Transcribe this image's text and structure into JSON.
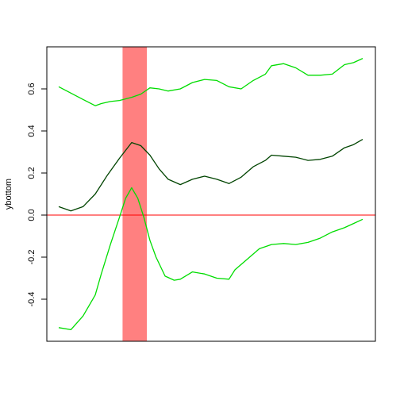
{
  "chart_data": {
    "type": "line",
    "title": "",
    "xlabel": "",
    "ylabel": "ybottom",
    "xlim": [
      0,
      100
    ],
    "ylim": [
      -0.6,
      0.8
    ],
    "yticks": [
      {
        "value": -0.4,
        "label": "-0.4"
      },
      {
        "value": -0.2,
        "label": "-0.2"
      },
      {
        "value": 0.0,
        "label": "0.0"
      },
      {
        "value": 0.2,
        "label": "0.2"
      },
      {
        "value": 0.4,
        "label": "0.4"
      },
      {
        "value": 0.6,
        "label": "0.6"
      }
    ],
    "grid": false,
    "reference_line": {
      "y": 0,
      "color": "#ff0000"
    },
    "band": {
      "x_start": 21,
      "x_end": 29,
      "color": "#ff8080"
    },
    "series": [
      {
        "role": "upper",
        "color": "#00dd00",
        "x": [
          0,
          4,
          8,
          12,
          14,
          17,
          20,
          24,
          27,
          30,
          33,
          36,
          40,
          44,
          48,
          52,
          56,
          60,
          64,
          68,
          70,
          74,
          78,
          82,
          86,
          90,
          94,
          97,
          100
        ],
        "y": [
          0.61,
          0.58,
          0.55,
          0.52,
          0.53,
          0.54,
          0.545,
          0.56,
          0.575,
          0.605,
          0.6,
          0.59,
          0.6,
          0.63,
          0.645,
          0.64,
          0.61,
          0.6,
          0.64,
          0.67,
          0.71,
          0.72,
          0.7,
          0.665,
          0.665,
          0.67,
          0.715,
          0.725,
          0.745
        ]
      },
      {
        "role": "middle",
        "color": "#004400",
        "x": [
          0,
          4,
          8,
          12,
          16,
          20,
          24,
          27,
          30,
          33,
          36,
          40,
          44,
          48,
          52,
          56,
          60,
          64,
          68,
          70,
          74,
          78,
          82,
          86,
          90,
          94,
          97,
          100
        ],
        "y": [
          0.04,
          0.02,
          0.04,
          0.1,
          0.19,
          0.27,
          0.345,
          0.33,
          0.285,
          0.22,
          0.17,
          0.145,
          0.17,
          0.185,
          0.17,
          0.15,
          0.18,
          0.23,
          0.26,
          0.285,
          0.28,
          0.275,
          0.26,
          0.265,
          0.28,
          0.32,
          0.335,
          0.36
        ]
      },
      {
        "role": "lower",
        "color": "#00dd00",
        "x": [
          0,
          4,
          8,
          12,
          14,
          17,
          20,
          22,
          24,
          26,
          28,
          30,
          32,
          35,
          38,
          40,
          44,
          48,
          52,
          56,
          58,
          62,
          66,
          70,
          74,
          78,
          82,
          86,
          90,
          94,
          97,
          100
        ],
        "y": [
          -0.535,
          -0.545,
          -0.48,
          -0.38,
          -0.28,
          -0.14,
          -0.01,
          0.08,
          0.13,
          0.08,
          -0.01,
          -0.12,
          -0.2,
          -0.29,
          -0.31,
          -0.305,
          -0.27,
          -0.28,
          -0.3,
          -0.305,
          -0.26,
          -0.21,
          -0.16,
          -0.14,
          -0.135,
          -0.14,
          -0.13,
          -0.11,
          -0.08,
          -0.06,
          -0.04,
          -0.02
        ]
      }
    ]
  }
}
